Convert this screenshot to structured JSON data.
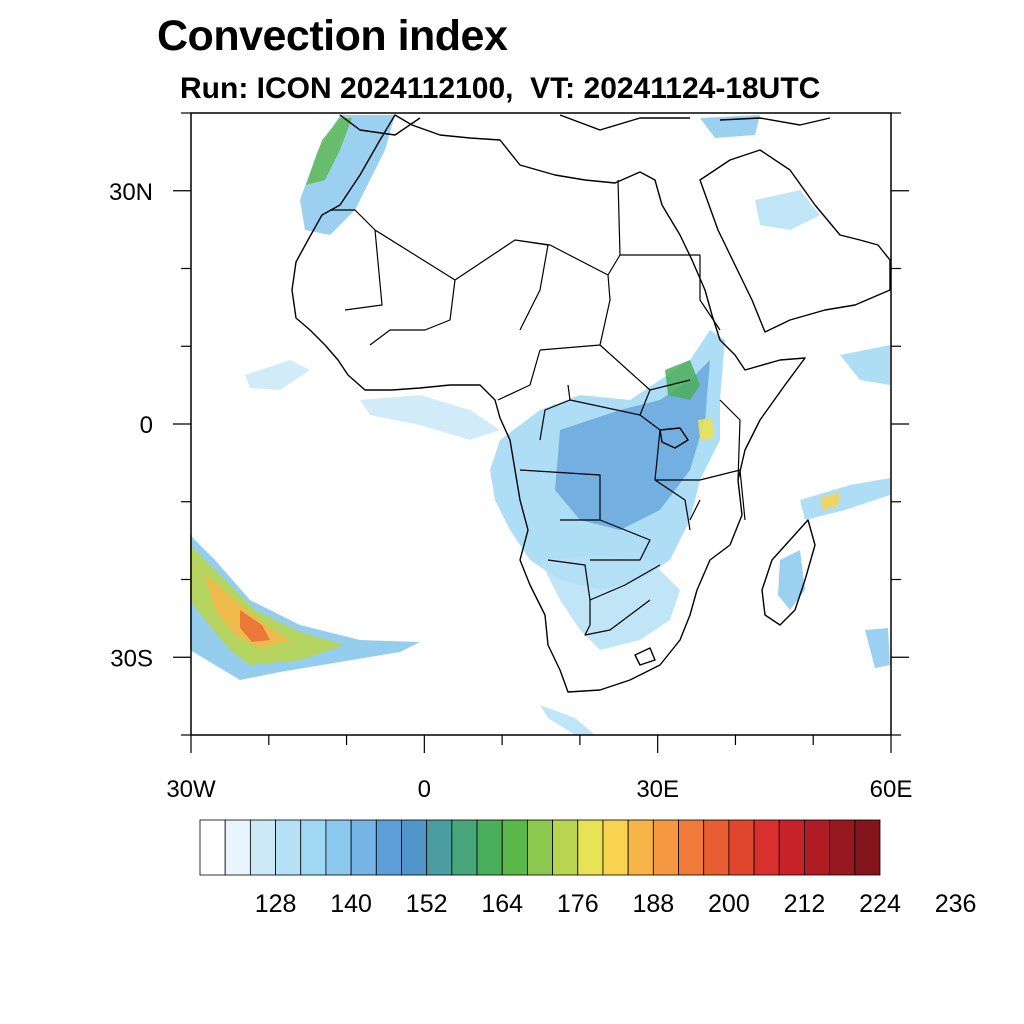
{
  "title": "Convection index",
  "subtitle": "Run: ICON 2024112100,  VT: 20241124-18UTC",
  "axes": {
    "y_ticks": [
      {
        "label": "30N",
        "lat": 30
      },
      {
        "label": "0",
        "lat": 0
      },
      {
        "label": "30S",
        "lat": -30
      }
    ],
    "x_ticks": [
      {
        "label": "30W",
        "lon": -30
      },
      {
        "label": "0",
        "lon": 0
      },
      {
        "label": "30E",
        "lon": 30
      },
      {
        "label": "60E",
        "lon": 60
      }
    ],
    "lon_range": [
      -30,
      60
    ],
    "lat_range": [
      -40,
      40
    ]
  },
  "colorbar": {
    "colors": [
      "#ffffff",
      "#e9f5fc",
      "#cde9f7",
      "#b5e0f5",
      "#a0d8f4",
      "#8ac8ed",
      "#75b5e5",
      "#5f9fd9",
      "#5096c8",
      "#4b9da2",
      "#48a67c",
      "#4aae5a",
      "#5ab84a",
      "#8cc84e",
      "#b9d550",
      "#e8e255",
      "#f8d350",
      "#f7b548",
      "#f69840",
      "#f07a38",
      "#e85e32",
      "#e0452e",
      "#d8302d",
      "#c62228",
      "#b01c24",
      "#981820",
      "#85151c"
    ],
    "labels": [
      "128",
      "140",
      "152",
      "164",
      "176",
      "188",
      "200",
      "212",
      "224",
      "236"
    ]
  },
  "chart_data": {
    "type": "heatmap",
    "title": "Convection index",
    "subtitle": "Run: ICON 2024112100,  VT: 20241124-18UTC",
    "variable": "Convection index",
    "region": "Africa",
    "lon_range": [
      -30,
      60
    ],
    "lat_range": [
      -40,
      40
    ],
    "colorbar_labels": [
      128,
      140,
      152,
      164,
      176,
      188,
      200,
      212,
      224,
      236
    ]
  }
}
